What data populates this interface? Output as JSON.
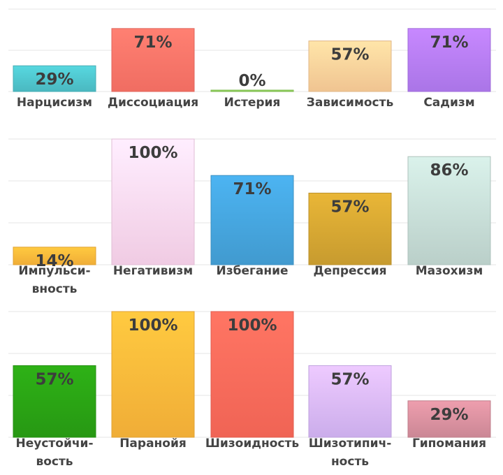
{
  "chart_data": [
    {
      "type": "bar",
      "categories": [
        "Нарцисизм",
        "Диссоциация",
        "Истерия",
        "Зависимость",
        "Садизм"
      ],
      "category_lines": [
        [
          "Нарцисизм"
        ],
        [
          "Диссоциация"
        ],
        [
          "Истерия"
        ],
        [
          "Зависимость"
        ],
        [
          "Садизм"
        ]
      ],
      "values": [
        29,
        71,
        0,
        57,
        71
      ],
      "value_labels": [
        "29%",
        "71%",
        "0%",
        "57%",
        "71%"
      ],
      "colors": [
        "#4fc4cc",
        "#ff7468",
        "#8fd15a",
        "#ffd09a",
        "#b57cf6"
      ],
      "ylim": [
        0,
        100
      ],
      "grid": true
    },
    {
      "type": "bar",
      "categories": [
        "Импульси-вность",
        "Негативизм",
        "Избегание",
        "Депрессия",
        "Мазохизм"
      ],
      "category_lines": [
        [
          "Импульси-",
          "вность"
        ],
        [
          "Негативизм"
        ],
        [
          "Избегание"
        ],
        [
          "Депрессия"
        ],
        [
          "Мазохизм"
        ]
      ],
      "values": [
        14,
        100,
        71,
        57,
        86
      ],
      "value_labels": [
        "14%",
        "100%",
        "71%",
        "57%",
        "86%"
      ],
      "colors": [
        "#ffb83a",
        "#ffd8f2",
        "#45a4dc",
        "#d4a532",
        "#c6dcd6"
      ],
      "ylim": [
        0,
        100
      ],
      "grid": true
    },
    {
      "type": "bar",
      "categories": [
        "Неустойчи-вость",
        "Паранойя",
        "Шизоидность",
        "Шизотипич-ность",
        "Гипомания"
      ],
      "category_lines": [
        [
          "Неустойчи-",
          "вость"
        ],
        [
          "Паранойя"
        ],
        [
          "Шизоидность"
        ],
        [
          "Шизотипич-",
          "ность"
        ],
        [
          "Гипомания"
        ]
      ],
      "values": [
        57,
        100,
        100,
        57,
        29
      ],
      "value_labels": [
        "57%",
        "100%",
        "100%",
        "57%",
        "29%"
      ],
      "colors": [
        "#2aa214",
        "#ffb83a",
        "#ff6a5a",
        "#d8b8fa",
        "#d8909e"
      ],
      "ylim": [
        0,
        100
      ],
      "grid": true
    }
  ]
}
